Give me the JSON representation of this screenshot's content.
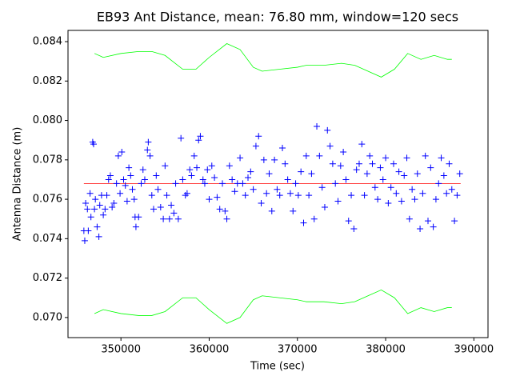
{
  "chart_data": {
    "type": "scatter",
    "title": "EB93 Ant Distance, mean: 76.80 mm, window=120 secs",
    "xlabel": "Time (sec)",
    "ylabel": "Antenna Distance (m)",
    "color": "#0000ff",
    "xlim": [
      344000,
      391600
    ],
    "ylim": [
      0.06898,
      0.08457
    ],
    "xticks": [
      350000,
      360000,
      370000,
      380000,
      390000
    ],
    "yticks": [
      {
        "value": 0.07,
        "label": "0.070"
      },
      0.072,
      0.074,
      0.076,
      0.078,
      {
        "value": 0.08,
        "label": "0.080"
      },
      0.082,
      0.084
    ],
    "x": [
      345800,
      345900,
      346000,
      346200,
      346300,
      346500,
      346600,
      346800,
      346900,
      347000,
      347100,
      347300,
      347500,
      347600,
      347800,
      348000,
      348200,
      348400,
      348600,
      348800,
      349000,
      349200,
      349500,
      349700,
      349900,
      350100,
      350300,
      350500,
      350700,
      350900,
      351100,
      351300,
      351500,
      351600,
      351700,
      352000,
      352300,
      352500,
      352700,
      353000,
      353100,
      353300,
      353500,
      353700,
      354000,
      354200,
      354500,
      354800,
      355000,
      355200,
      355500,
      355700,
      356000,
      356200,
      356500,
      356800,
      357000,
      357300,
      357500,
      357800,
      358000,
      358300,
      358600,
      358800,
      359000,
      359300,
      359500,
      359800,
      360000,
      360300,
      360600,
      360900,
      361200,
      361500,
      361800,
      362000,
      362300,
      362600,
      362900,
      363200,
      363500,
      363800,
      364100,
      364400,
      364700,
      365000,
      365300,
      365600,
      365900,
      366200,
      366500,
      366800,
      367100,
      367400,
      367700,
      368000,
      368300,
      368600,
      368900,
      369200,
      369500,
      369800,
      370100,
      370400,
      370700,
      371000,
      371300,
      371600,
      371900,
      372200,
      372500,
      372800,
      373100,
      373400,
      373700,
      374000,
      374300,
      374600,
      374900,
      375200,
      375500,
      375800,
      376100,
      376400,
      376700,
      377000,
      377300,
      377600,
      377900,
      378200,
      378500,
      378800,
      379100,
      379400,
      379700,
      380000,
      380300,
      380600,
      380900,
      381200,
      381500,
      381800,
      382100,
      382400,
      382700,
      383000,
      383300,
      383600,
      383900,
      384200,
      384500,
      384800,
      385100,
      385400,
      385700,
      386000,
      386300,
      386600,
      386900,
      387200,
      387500,
      387800,
      388100,
      388400
    ],
    "values": [
      0.0744,
      0.0739,
      0.0758,
      0.0755,
      0.0744,
      0.0763,
      0.0751,
      0.0789,
      0.0788,
      0.0755,
      0.076,
      0.0746,
      0.0741,
      0.0757,
      0.0762,
      0.0752,
      0.0755,
      0.0762,
      0.077,
      0.0772,
      0.0756,
      0.0758,
      0.0768,
      0.0782,
      0.0763,
      0.0784,
      0.077,
      0.0767,
      0.0759,
      0.0776,
      0.0772,
      0.0765,
      0.076,
      0.0751,
      0.0746,
      0.0751,
      0.0768,
      0.0775,
      0.077,
      0.0785,
      0.0789,
      0.0782,
      0.0762,
      0.0755,
      0.0772,
      0.0765,
      0.0756,
      0.075,
      0.0777,
      0.0762,
      0.075,
      0.0757,
      0.0753,
      0.0768,
      0.075,
      0.0791,
      0.077,
      0.0762,
      0.0763,
      0.0775,
      0.0772,
      0.0782,
      0.0776,
      0.079,
      0.0792,
      0.077,
      0.0768,
      0.0775,
      0.076,
      0.0777,
      0.0771,
      0.0761,
      0.0755,
      0.0768,
      0.0754,
      0.075,
      0.0777,
      0.077,
      0.0764,
      0.0768,
      0.0781,
      0.0768,
      0.0762,
      0.0771,
      0.0774,
      0.0765,
      0.0787,
      0.0792,
      0.0758,
      0.078,
      0.0763,
      0.0773,
      0.0754,
      0.078,
      0.0765,
      0.0762,
      0.0786,
      0.0778,
      0.077,
      0.0763,
      0.0754,
      0.0768,
      0.0762,
      0.0774,
      0.0748,
      0.0782,
      0.0762,
      0.0773,
      0.075,
      0.0797,
      0.0782,
      0.0766,
      0.0756,
      0.0795,
      0.0787,
      0.0778,
      0.0768,
      0.0759,
      0.0777,
      0.0784,
      0.077,
      0.0749,
      0.0762,
      0.0745,
      0.0775,
      0.0778,
      0.0788,
      0.0762,
      0.0773,
      0.0782,
      0.0778,
      0.0766,
      0.076,
      0.0776,
      0.077,
      0.0781,
      0.0758,
      0.0766,
      0.0778,
      0.0763,
      0.0774,
      0.0759,
      0.0772,
      0.0781,
      0.075,
      0.0765,
      0.076,
      0.0773,
      0.0745,
      0.0763,
      0.0782,
      0.0749,
      0.0776,
      0.0746,
      0.076,
      0.0768,
      0.0781,
      0.0772,
      0.0763,
      0.0778,
      0.0765,
      0.0749,
      0.0762,
      0.0773
    ],
    "lines": [
      {
        "color": "#00ff00",
        "x": [
          347000,
          348000,
          350000,
          352000,
          353500,
          355000,
          357000,
          358500,
          360000,
          362000,
          363500,
          365000,
          366000,
          368000,
          370000,
          371000,
          373000,
          375000,
          376500,
          378000,
          379500,
          381000,
          382500,
          384000,
          385500,
          387000,
          387500
        ],
        "values": [
          0.0834,
          0.0832,
          0.0834,
          0.0835,
          0.0835,
          0.0833,
          0.0826,
          0.0826,
          0.0832,
          0.0839,
          0.0836,
          0.0827,
          0.0825,
          0.0826,
          0.0827,
          0.0828,
          0.0828,
          0.0829,
          0.0828,
          0.0825,
          0.0822,
          0.0826,
          0.0834,
          0.0831,
          0.0833,
          0.0831,
          0.0831
        ]
      },
      {
        "color": "#00ff00",
        "x": [
          347000,
          348000,
          350000,
          352000,
          353500,
          355000,
          357000,
          358500,
          360000,
          362000,
          363500,
          365000,
          366000,
          368000,
          370000,
          371000,
          373000,
          375000,
          376500,
          378000,
          379500,
          381000,
          382500,
          384000,
          385500,
          387000,
          387500
        ],
        "values": [
          0.0702,
          0.0704,
          0.0702,
          0.0701,
          0.0701,
          0.0703,
          0.071,
          0.071,
          0.0704,
          0.0697,
          0.07,
          0.0709,
          0.0711,
          0.071,
          0.0709,
          0.0708,
          0.0708,
          0.0707,
          0.0708,
          0.0711,
          0.0714,
          0.071,
          0.0702,
          0.0705,
          0.0703,
          0.0705,
          0.0705
        ]
      },
      {
        "color": "#ff0000",
        "x": [
          345800,
          388500
        ],
        "values": [
          0.0768,
          0.0768
        ]
      }
    ]
  }
}
